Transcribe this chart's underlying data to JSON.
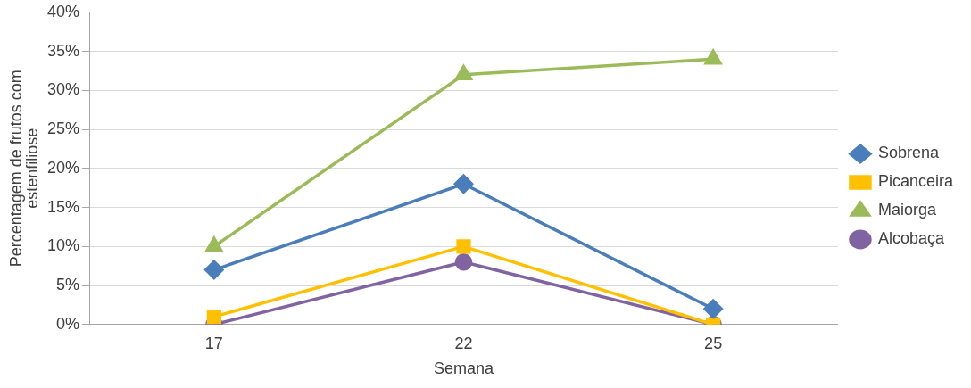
{
  "chart_data": {
    "type": "line",
    "xlabel": "Semana",
    "ylabel": "Percentagem de frutos com estenfiliose",
    "categories": [
      "17",
      "22",
      "25"
    ],
    "series": [
      {
        "name": "Sobrena",
        "color": "#4a7ebb",
        "values": [
          7,
          18,
          2
        ],
        "marker": "diamond"
      },
      {
        "name": "Picanceira",
        "color": "#ffc000",
        "values": [
          1,
          10,
          0
        ],
        "marker": "square"
      },
      {
        "name": "Maiorga",
        "color": "#9bbb59",
        "values": [
          10,
          32,
          34
        ],
        "marker": "triangle"
      },
      {
        "name": "Alcobaça",
        "color": "#8064a2",
        "values": [
          0,
          8,
          0
        ],
        "marker": "circle"
      }
    ],
    "ylim": [
      0,
      40
    ],
    "yticks": [
      {
        "value": 0,
        "label": "0%"
      },
      {
        "value": 5,
        "label": "5%"
      },
      {
        "value": 10,
        "label": "10%"
      },
      {
        "value": 15,
        "label": "15%"
      },
      {
        "value": 20,
        "label": "20%"
      },
      {
        "value": 25,
        "label": "25%"
      },
      {
        "value": 30,
        "label": "30%"
      },
      {
        "value": 35,
        "label": "35%"
      },
      {
        "value": 40,
        "label": "40%"
      }
    ],
    "grid": "y",
    "legend": "right",
    "line_style": "solid"
  }
}
